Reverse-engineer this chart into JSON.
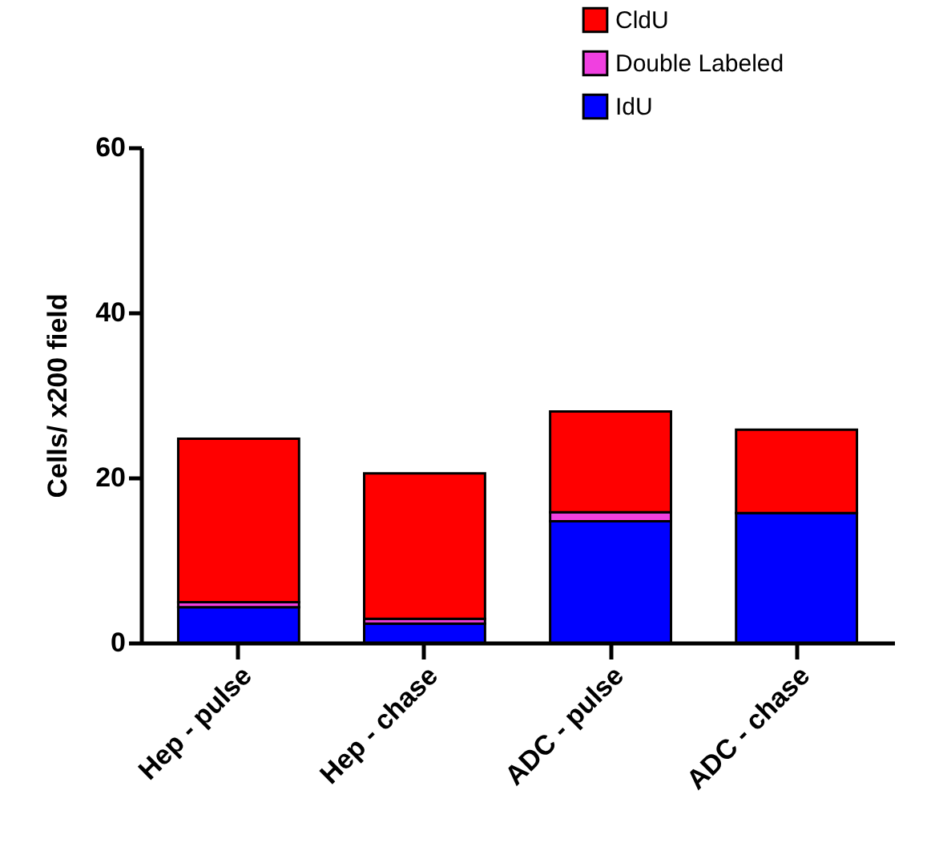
{
  "chart_data": {
    "type": "bar",
    "ylabel": "Cells/ x200 field",
    "categories": [
      "Hep - pulse",
      "Hep - chase",
      "ADC - pulse",
      "ADC - chase"
    ],
    "stacked": true,
    "series": [
      {
        "name": "IdU",
        "color": "#0000ff",
        "values": [
          4.3,
          2.3,
          14.7,
          15.7
        ]
      },
      {
        "name": "Double Labeled",
        "color": "#f040e0",
        "values": [
          0.6,
          0.6,
          1.1,
          null
        ]
      },
      {
        "name": "CldU",
        "color": "#ff0000",
        "values": [
          19.8,
          17.6,
          12.2,
          10.1
        ]
      }
    ],
    "ylim": [
      0,
      60
    ],
    "yticks": [
      0,
      20,
      40,
      60
    ],
    "grid": false,
    "legend": "top right"
  }
}
